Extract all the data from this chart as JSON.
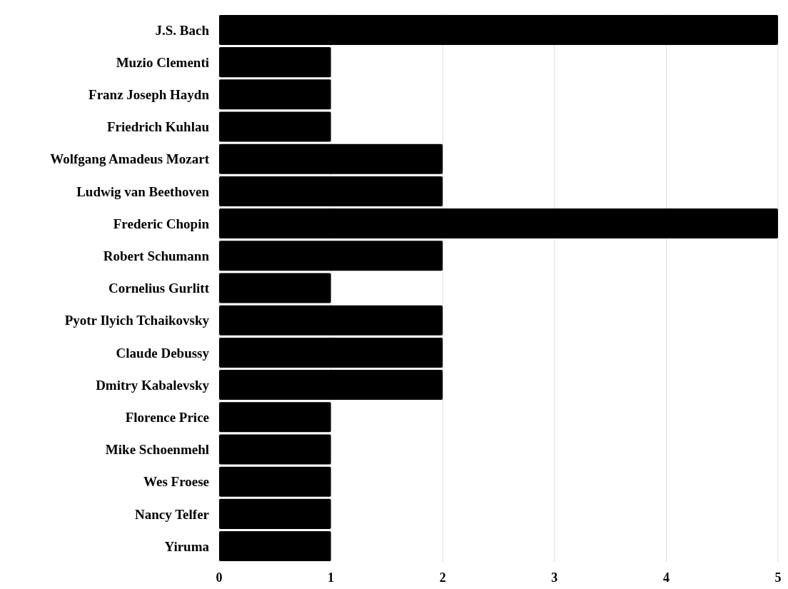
{
  "chart_data": {
    "type": "bar",
    "orientation": "horizontal",
    "categories": [
      "J.S. Bach",
      "Muzio Clementi",
      "Franz Joseph Haydn",
      "Friedrich Kuhlau",
      "Wolfgang Amadeus Mozart",
      "Ludwig van Beethoven",
      "Frederic Chopin",
      "Robert Schumann",
      "Cornelius Gurlitt",
      "Pyotr Ilyich Tchaikovsky",
      "Claude Debussy",
      "Dmitry Kabalevsky",
      "Florence Price",
      "Mike Schoenmehl",
      "Wes Froese",
      "Nancy Telfer",
      "Yiruma"
    ],
    "values": [
      5,
      1,
      1,
      1,
      2,
      2,
      5,
      2,
      1,
      2,
      2,
      2,
      1,
      1,
      1,
      1,
      1
    ],
    "color": "#000000",
    "xlim": [
      0,
      5
    ],
    "xticks": [
      0,
      1,
      2,
      3,
      4,
      5
    ],
    "grid": "x"
  }
}
